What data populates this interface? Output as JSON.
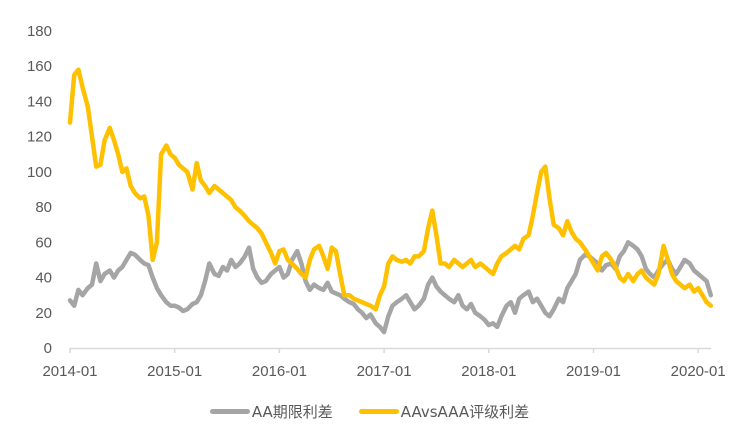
{
  "chart_data": {
    "type": "line",
    "title": "",
    "xlabel": "",
    "ylabel": "",
    "ylim": [
      0,
      180
    ],
    "yticks": [
      0,
      20,
      40,
      60,
      80,
      100,
      120,
      140,
      160,
      180
    ],
    "xticks": [
      "2014-01",
      "2015-01",
      "2016-01",
      "2017-01",
      "2018-01",
      "2019-01",
      "2020-01"
    ],
    "grid": false,
    "legend_position": "bottom",
    "x": [
      2014.0,
      2014.04,
      2014.08,
      2014.12,
      2014.17,
      2014.21,
      2014.25,
      2014.29,
      2014.33,
      2014.38,
      2014.42,
      2014.46,
      2014.5,
      2014.54,
      2014.58,
      2014.62,
      2014.67,
      2014.71,
      2014.75,
      2014.79,
      2014.83,
      2014.87,
      2014.92,
      2014.96,
      2015.0,
      2015.04,
      2015.08,
      2015.12,
      2015.17,
      2015.21,
      2015.25,
      2015.29,
      2015.33,
      2015.38,
      2015.42,
      2015.46,
      2015.5,
      2015.54,
      2015.58,
      2015.62,
      2015.67,
      2015.71,
      2015.75,
      2015.79,
      2015.83,
      2015.87,
      2015.92,
      2015.96,
      2016.0,
      2016.04,
      2016.08,
      2016.12,
      2016.17,
      2016.21,
      2016.25,
      2016.29,
      2016.33,
      2016.38,
      2016.42,
      2016.46,
      2016.5,
      2016.54,
      2016.58,
      2016.62,
      2016.67,
      2016.71,
      2016.75,
      2016.79,
      2016.83,
      2016.87,
      2016.92,
      2016.96,
      2017.0,
      2017.04,
      2017.08,
      2017.12,
      2017.17,
      2017.21,
      2017.25,
      2017.29,
      2017.33,
      2017.38,
      2017.42,
      2017.46,
      2017.5,
      2017.54,
      2017.58,
      2017.62,
      2017.67,
      2017.71,
      2017.75,
      2017.79,
      2017.83,
      2017.87,
      2017.92,
      2017.96,
      2018.0,
      2018.04,
      2018.08,
      2018.12,
      2018.17,
      2018.21,
      2018.25,
      2018.29,
      2018.33,
      2018.38,
      2018.42,
      2018.46,
      2018.5,
      2018.54,
      2018.58,
      2018.62,
      2018.67,
      2018.71,
      2018.75,
      2018.79,
      2018.83,
      2018.87,
      2018.92,
      2018.96,
      2019.0,
      2019.04,
      2019.08,
      2019.12,
      2019.17,
      2019.21,
      2019.25,
      2019.29,
      2019.33,
      2019.38,
      2019.42,
      2019.46,
      2019.5,
      2019.54,
      2019.58,
      2019.62,
      2019.67,
      2019.71,
      2019.75,
      2019.79,
      2019.83,
      2019.87,
      2019.92,
      2019.96,
      2020.0,
      2020.04,
      2020.08,
      2020.12
    ],
    "series": [
      {
        "name": "AA期限利差",
        "color": "#A5A5A5",
        "values": [
          27,
          24,
          33,
          30,
          34,
          36,
          48,
          38,
          42,
          44,
          40,
          44,
          46,
          50,
          54,
          53,
          50,
          48,
          47,
          40,
          34,
          30,
          26,
          24,
          24,
          23,
          21,
          22,
          25,
          26,
          30,
          38,
          48,
          42,
          41,
          46,
          44,
          50,
          46,
          48,
          52,
          57,
          45,
          40,
          37,
          38,
          42,
          44,
          46,
          40,
          42,
          50,
          55,
          48,
          38,
          33,
          36,
          34,
          33,
          37,
          32,
          31,
          30,
          28,
          26,
          25,
          22,
          20,
          17,
          19,
          14,
          12,
          9,
          18,
          24,
          26,
          28,
          30,
          26,
          22,
          24,
          28,
          36,
          40,
          35,
          32,
          30,
          28,
          26,
          30,
          24,
          22,
          25,
          20,
          18,
          16,
          13,
          14,
          12,
          18,
          24,
          26,
          20,
          28,
          30,
          32,
          26,
          28,
          24,
          20,
          18,
          22,
          28,
          26,
          34,
          38,
          42,
          50,
          53,
          52,
          50,
          48,
          44,
          47,
          48,
          45,
          52,
          55,
          60,
          58,
          56,
          52,
          45,
          42,
          40,
          44,
          48,
          50,
          45,
          42,
          46,
          50,
          48,
          44,
          42,
          40,
          38,
          30
        ]
      },
      {
        "name": "AAvsAAA评级利差",
        "color": "#FFC000",
        "values": [
          128,
          155,
          158,
          148,
          137,
          120,
          103,
          104,
          118,
          125,
          118,
          110,
          100,
          102,
          92,
          88,
          85,
          86,
          75,
          50,
          60,
          110,
          115,
          110,
          108,
          104,
          102,
          100,
          90,
          105,
          95,
          92,
          88,
          92,
          90,
          88,
          86,
          84,
          80,
          78,
          75,
          72,
          70,
          68,
          65,
          60,
          54,
          48,
          55,
          56,
          50,
          48,
          45,
          42,
          40,
          50,
          56,
          58,
          52,
          45,
          57,
          55,
          42,
          30,
          30,
          28,
          27,
          26,
          25,
          24,
          22,
          30,
          35,
          48,
          52,
          50,
          49,
          50,
          48,
          52,
          52,
          55,
          68,
          78,
          64,
          48,
          48,
          46,
          50,
          48,
          46,
          48,
          50,
          46,
          48,
          46,
          44,
          42,
          48,
          52,
          54,
          56,
          58,
          56,
          62,
          64,
          75,
          88,
          100,
          103,
          85,
          70,
          68,
          64,
          72,
          66,
          62,
          60,
          56,
          52,
          48,
          44,
          52,
          54,
          50,
          46,
          40,
          38,
          42,
          38,
          42,
          44,
          40,
          38,
          36,
          42,
          58,
          50,
          42,
          38,
          36,
          34,
          36,
          32,
          34,
          30,
          26,
          24
        ]
      }
    ]
  },
  "legend": {
    "items": [
      {
        "label": "AA期限利差",
        "color": "#A5A5A5"
      },
      {
        "label": "AAvsAAA评级利差",
        "color": "#FFC000"
      }
    ]
  },
  "axes": {
    "y_labels": [
      "0",
      "20",
      "40",
      "60",
      "80",
      "100",
      "120",
      "140",
      "160",
      "180"
    ],
    "x_labels": [
      "2014-01",
      "2015-01",
      "2016-01",
      "2017-01",
      "2018-01",
      "2019-01",
      "2020-01"
    ]
  }
}
